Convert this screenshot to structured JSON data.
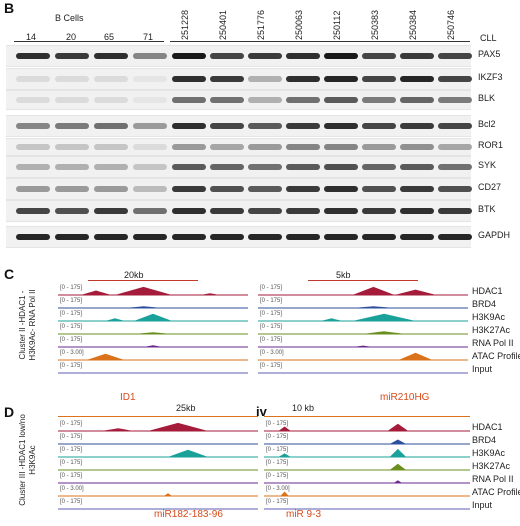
{
  "panels": {
    "b": "B",
    "c": "C",
    "d": "D",
    "iv": "iv"
  },
  "blot": {
    "group_label": "B Cells",
    "cll_label": "CLL",
    "bcell_lanes": [
      "14",
      "20",
      "65",
      "71"
    ],
    "cll_lanes": [
      "251228",
      "250401",
      "251776",
      "250063",
      "250112",
      "250383",
      "250384",
      "250746"
    ],
    "proteins": [
      "PAX5",
      "IKZF3",
      "BLK",
      "Bcl2",
      "ROR1",
      "SYK",
      "CD27",
      "BTK",
      "GAPDH"
    ],
    "band_intensity": [
      [
        0.9,
        0.85,
        0.9,
        0.5,
        1.0,
        0.8,
        0.85,
        0.9,
        1.0,
        0.8,
        0.85,
        0.8
      ],
      [
        0.1,
        0.1,
        0.1,
        0.05,
        0.9,
        0.85,
        0.3,
        0.9,
        0.95,
        0.8,
        0.95,
        0.8
      ],
      [
        0.1,
        0.1,
        0.1,
        0.05,
        0.6,
        0.6,
        0.3,
        0.6,
        0.7,
        0.55,
        0.65,
        0.55
      ],
      [
        0.5,
        0.55,
        0.6,
        0.4,
        0.9,
        0.8,
        0.7,
        0.85,
        0.9,
        0.8,
        0.85,
        0.8
      ],
      [
        0.2,
        0.2,
        0.2,
        0.1,
        0.4,
        0.35,
        0.4,
        0.5,
        0.5,
        0.4,
        0.45,
        0.35
      ],
      [
        0.3,
        0.3,
        0.3,
        0.2,
        0.7,
        0.65,
        0.6,
        0.7,
        0.75,
        0.65,
        0.7,
        0.6
      ],
      [
        0.4,
        0.4,
        0.4,
        0.25,
        0.85,
        0.75,
        0.7,
        0.85,
        0.9,
        0.75,
        0.85,
        0.75
      ],
      [
        0.8,
        0.75,
        0.85,
        0.6,
        0.9,
        0.85,
        0.8,
        0.85,
        0.9,
        0.85,
        0.9,
        0.85
      ],
      [
        0.95,
        0.95,
        0.95,
        0.95,
        0.95,
        0.95,
        0.95,
        0.95,
        0.95,
        0.95,
        0.95,
        0.95
      ]
    ]
  },
  "cluster_c": "Cluster II -HDAC1 - H3K9Ac- RNA Pol II",
  "cluster_d": "Cluster III -HDAC1 low/no H3K9Ac",
  "track_labels": [
    "HDAC1",
    "BRD4",
    "H3K9Ac",
    "H3K27Ac",
    "RNA Pol II",
    "ATAC Profile",
    "Input"
  ],
  "track_ranges": [
    "[0 - 175]",
    "[0 - 175]",
    "[0 - 175]",
    "[0 - 175]",
    "[0 - 175]",
    "[0 - 3.00]",
    "[0 - 175]"
  ],
  "track_colors": [
    "#a51b3a",
    "#2d4f9e",
    "#1aa19a",
    "#6a8f1e",
    "#6a2a8f",
    "#d9721a",
    "#5b5fb0"
  ],
  "c_left": {
    "scale": "20kb",
    "gene": "ID1"
  },
  "c_right": {
    "scale": "5kb",
    "gene": "miR210HG"
  },
  "d_left": {
    "scale": "25kb",
    "gene": "miR182-183-96"
  },
  "d_right": {
    "scale": "10 kb",
    "gene": "miR 9-3"
  }
}
